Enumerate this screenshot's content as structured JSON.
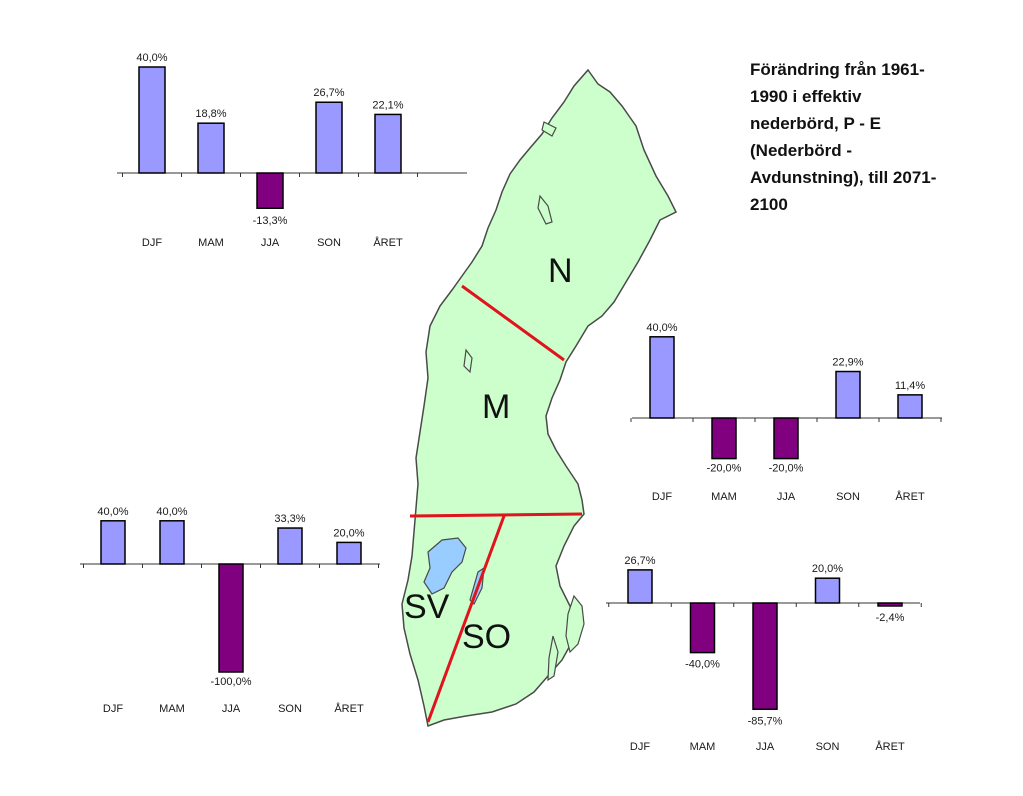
{
  "title_lines": [
    "Förändring från 1961-",
    "1990 i effektiv",
    "nederbörd, P - E",
    "(Nederbörd -",
    "Avdunstning), till 2071-",
    "2100"
  ],
  "colors": {
    "positive": "#9999ff",
    "negative": "#800080",
    "map_fill": "#ccffcc",
    "map_border": "#4a4a4a",
    "divider": "#e0141e",
    "lake": "#99ccff"
  },
  "map": {
    "regions": [
      "N",
      "M",
      "SV",
      "SO"
    ]
  },
  "chart_data": [
    {
      "type": "bar",
      "region": "N",
      "categories": [
        "DJF",
        "MAM",
        "JJA",
        "SON",
        "ÅRET"
      ],
      "values": [
        40.0,
        18.8,
        -13.3,
        26.7,
        22.1
      ],
      "labels": [
        "40,0%",
        "18,8%",
        "-13,3%",
        "26,7%",
        "22,1%"
      ],
      "unit": "%"
    },
    {
      "type": "bar",
      "region": "M",
      "categories": [
        "DJF",
        "MAM",
        "JJA",
        "SON",
        "ÅRET"
      ],
      "values": [
        40.0,
        -20.0,
        -20.0,
        22.9,
        11.4
      ],
      "labels": [
        "40,0%",
        "-20,0%",
        "-20,0%",
        "22,9%",
        "11,4%"
      ],
      "unit": "%"
    },
    {
      "type": "bar",
      "region": "SV",
      "categories": [
        "DJF",
        "MAM",
        "JJA",
        "SON",
        "ÅRET"
      ],
      "values": [
        40.0,
        40.0,
        -100.0,
        33.3,
        20.0
      ],
      "labels": [
        "40,0%",
        "40,0%",
        "-100,0%",
        "33,3%",
        "20,0%"
      ],
      "unit": "%"
    },
    {
      "type": "bar",
      "region": "SO",
      "categories": [
        "DJF",
        "MAM",
        "JJA",
        "SON",
        "ÅRET"
      ],
      "values": [
        26.7,
        -40.0,
        -85.7,
        20.0,
        -2.4
      ],
      "labels": [
        "26,7%",
        "-40,0%",
        "-85,7%",
        "20,0%",
        "-2,4%"
      ],
      "unit": "%"
    }
  ]
}
